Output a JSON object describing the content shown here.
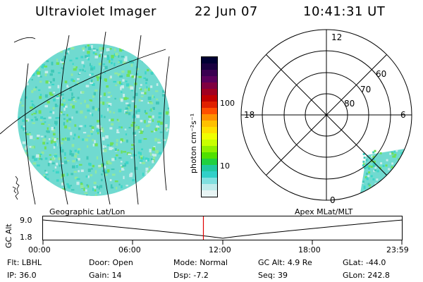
{
  "header": {
    "title": "Ultraviolet Imager",
    "date": "22 Jun 07",
    "time": "10:41:31 UT"
  },
  "colorbar": {
    "unit_label": "photon cm⁻²s⁻¹",
    "ticks": [
      "100",
      "10"
    ],
    "colors": [
      "#000033",
      "#1a0040",
      "#3a0050",
      "#5a005a",
      "#800040",
      "#a00020",
      "#c00000",
      "#e02000",
      "#ff5000",
      "#ff9000",
      "#ffc000",
      "#ffe000",
      "#f0ff00",
      "#c8ff00",
      "#90f000",
      "#50e000",
      "#20d040",
      "#20c8a0",
      "#30d0c8",
      "#80e0e0",
      "#c0ecec",
      "#e8f4f4"
    ]
  },
  "polar": {
    "mlt_labels": {
      "top": "12",
      "left": "18",
      "right": "6",
      "bottom": "0"
    },
    "lat_labels": [
      "60",
      "70",
      "80"
    ]
  },
  "image_captions": {
    "left": "Geographic Lat/Lon",
    "right": "Apex MLat/MLT"
  },
  "altitude_plot": {
    "ylabel": "GC Alt",
    "ytick_top": "9.0",
    "ytick_bottom": "1.8",
    "xticks": [
      "00:00",
      "06:00",
      "12:00",
      "18:00",
      "23:59"
    ],
    "current_time_fraction": 0.446
  },
  "status": {
    "row1": [
      {
        "key": "Flt:",
        "value": "LBHL"
      },
      {
        "key": "Door:",
        "value": "Open"
      },
      {
        "key": "Mode:",
        "value": "Normal"
      },
      {
        "key": "GC Alt:",
        "value": "4.9 Re"
      },
      {
        "key": "GLat:",
        "value": "-44.0"
      }
    ],
    "row2": [
      {
        "key": "IP:",
        "value": "36.0"
      },
      {
        "key": "Gain:",
        "value": "14"
      },
      {
        "key": "Dsp:",
        "value": "-7.2"
      },
      {
        "key": "Seq:",
        "value": "39"
      },
      {
        "key": "GLon:",
        "value": "242.8"
      }
    ]
  },
  "theme": {
    "cyan": "#3cd6c8",
    "green": "#6ee05a",
    "marker": "#e00000"
  }
}
